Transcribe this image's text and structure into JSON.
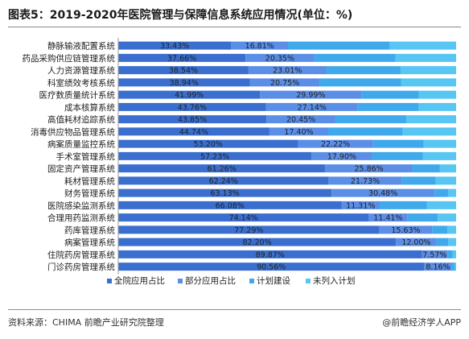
{
  "title": "图表5：2019-2020年医院管理与保障信息系统应用情况(单位：%)",
  "source": "资料来源：CHIMA 前瞻产业研究院整理",
  "credit": "@前瞻经济学人APP",
  "colors": {
    "series": [
      "#3a6fd0",
      "#5b8ee6",
      "#3fa9ec",
      "#57c6f2"
    ],
    "label": "#222222",
    "axis": "#999999"
  },
  "chart_data": {
    "type": "bar",
    "orientation": "horizontal",
    "stacked": true,
    "percent_stacked": true,
    "legend_position": "bottom",
    "grid": false,
    "categories": [
      "静脉输液配置系统",
      "药品采购供应链管理系统",
      "人力资源管理系统",
      "科室绩效考核系统",
      "医疗数质量统计系统",
      "成本核算系统",
      "高值耗材追踪系统",
      "消毒供应物品管理系统",
      "病案质量监控系统",
      "手术室管理系统",
      "固定资产管理系统",
      "耗材管理系统",
      "财务管理系统",
      "医院感染监测系统",
      "合理用药监测系统",
      "药库管理系统",
      "病案管理系统",
      "住院药房管理系统",
      "门诊药房管理系统"
    ],
    "series": [
      {
        "name": "全院应用占比",
        "values": [
          33.43,
          37.66,
          38.54,
          38.94,
          41.99,
          43.76,
          43.85,
          44.74,
          53.2,
          57.23,
          61.26,
          62.24,
          63.13,
          66.08,
          74.14,
          77.29,
          82.2,
          89.87,
          90.56
        ]
      },
      {
        "name": "部分应用占比",
        "values": [
          16.81,
          20.35,
          23.01,
          20.75,
          29.99,
          27.14,
          20.45,
          17.4,
          22.22,
          17.9,
          25.86,
          21.73,
          30.48,
          11.31,
          11.41,
          15.63,
          12.0,
          7.57,
          8.16
        ]
      },
      {
        "name": "计划建设",
        "values": [
          30.0,
          24.0,
          22.0,
          24.0,
          17.0,
          18.0,
          21.0,
          22.0,
          15.0,
          15.0,
          8.0,
          10.0,
          4.0,
          14.0,
          9.0,
          4.5,
          3.5,
          1.5,
          0.8
        ]
      },
      {
        "name": "未列入计划",
        "values": [
          19.76,
          17.99,
          16.45,
          16.31,
          11.02,
          11.1,
          14.7,
          15.86,
          9.58,
          9.87,
          4.88,
          6.03,
          2.39,
          8.61,
          5.45,
          2.58,
          2.3,
          1.06,
          0.48
        ]
      }
    ],
    "data_labels": [
      [
        "33.43%",
        "37.66%",
        "38.54%",
        "38.94%",
        "41.99%",
        "43.76%",
        "43.85%",
        "44.74%",
        "53.20%",
        "57.23%",
        "61.26%",
        "62.24%",
        "63.13%",
        "66.08%",
        "74.14%",
        "77.29%",
        "82.20%",
        "89.87%",
        "90.56%"
      ],
      [
        "16.81%",
        "20.35%",
        "23.01%",
        "20.75%",
        "29.99%",
        "27.14%",
        "20.45%",
        "17.40%",
        "22.22%",
        "17.90%",
        "25.86%",
        "21.73%",
        "30.48%",
        "11.31%",
        "11.41%",
        "15.63%",
        "12.00%",
        "7.57%",
        "8.16%"
      ]
    ]
  }
}
